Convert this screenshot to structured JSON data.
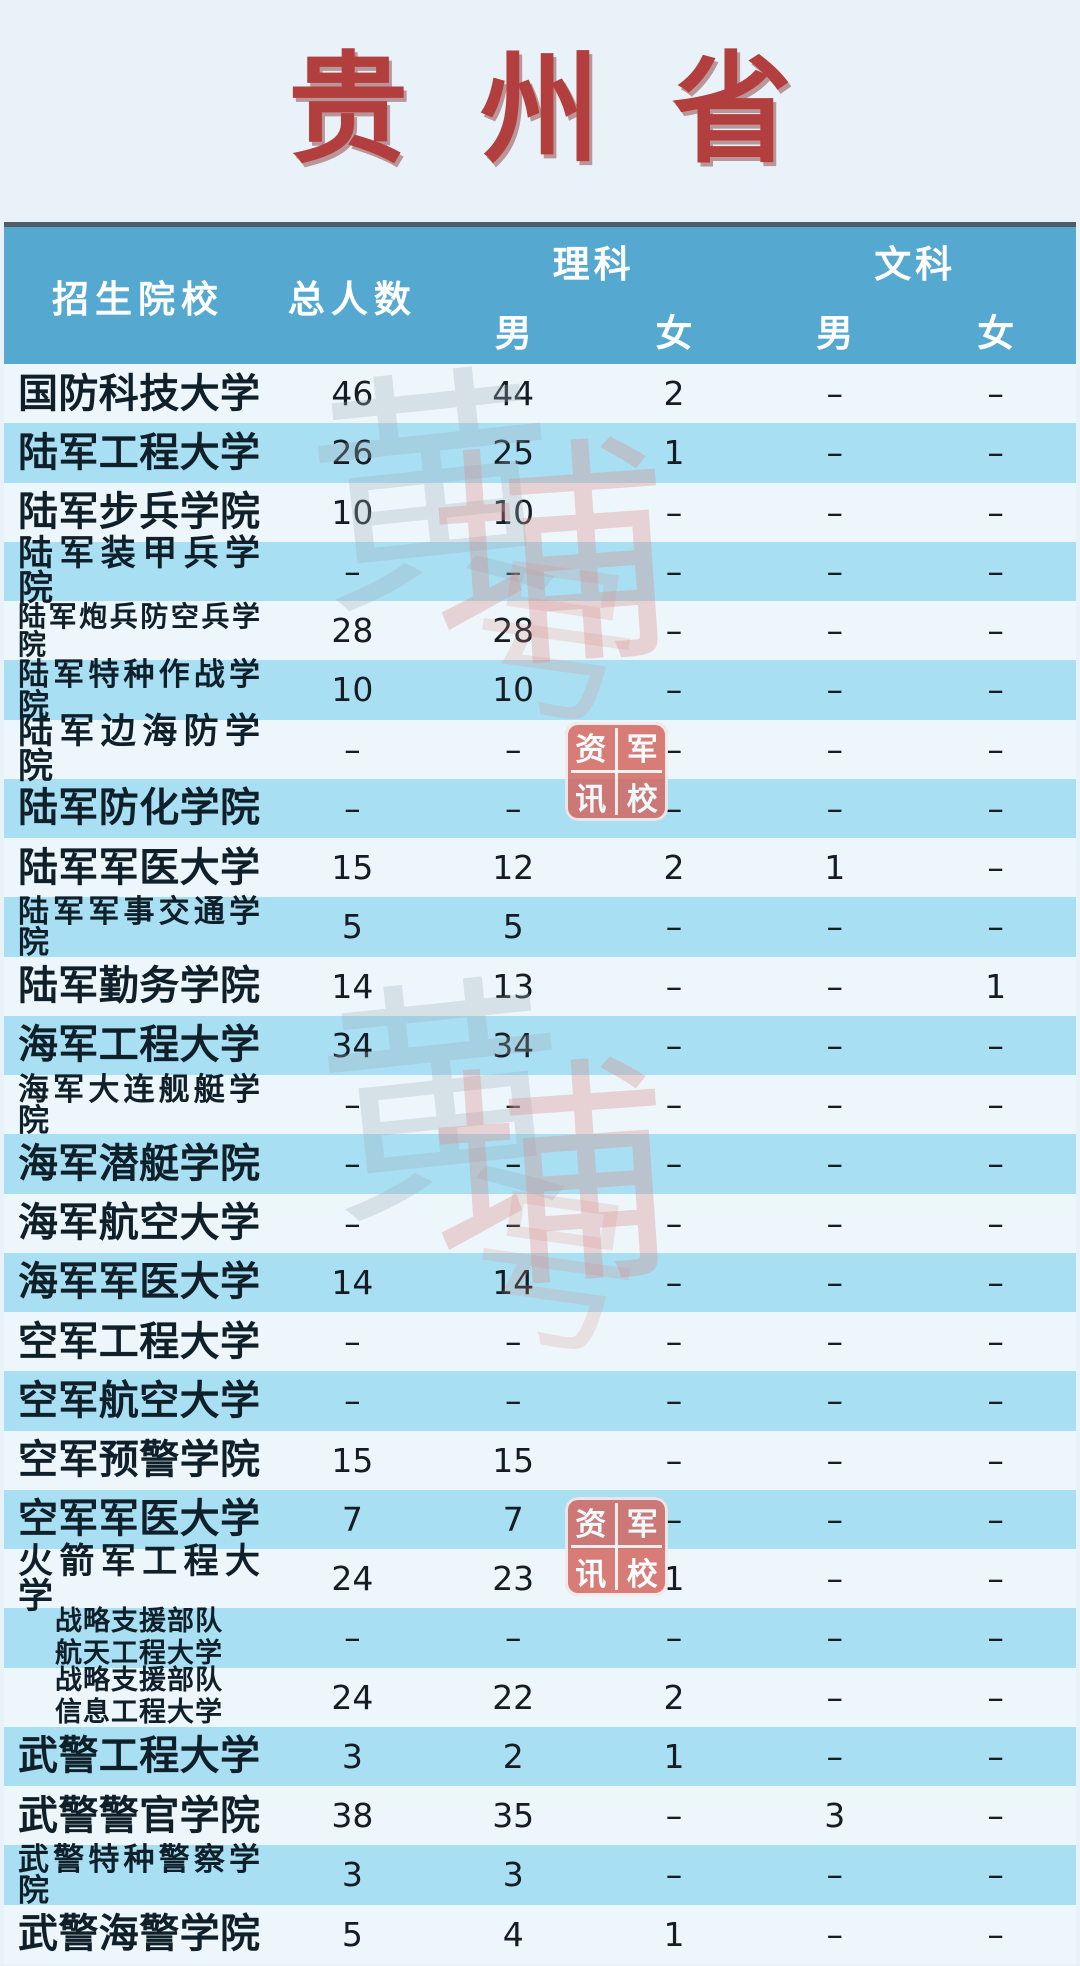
{
  "page": {
    "title": "贵州省"
  },
  "colors": {
    "title_red": "#b23f3d",
    "header_blue": "#55a9d0",
    "row_light": "#edf6fb",
    "row_blue": "#a9dff2",
    "table_top_border": "#4e5d68",
    "page_background": "#e9f2f9",
    "stamp_red": "#d4625c"
  },
  "table": {
    "header": {
      "school": "招生院校",
      "total": "总人数",
      "science": {
        "label": "理科",
        "male": "男",
        "female": "女"
      },
      "arts": {
        "label": "文科",
        "male": "男",
        "female": "女"
      }
    },
    "rows": [
      {
        "school": "国防科技大学",
        "total": "46",
        "sci_m": "44",
        "sci_f": "2",
        "art_m": "–",
        "art_f": "–"
      },
      {
        "school": "陆军工程大学",
        "total": "26",
        "sci_m": "25",
        "sci_f": "1",
        "art_m": "–",
        "art_f": "–"
      },
      {
        "school": "陆军步兵学院",
        "total": "10",
        "sci_m": "10",
        "sci_f": "–",
        "art_m": "–",
        "art_f": "–"
      },
      {
        "school": "陆军装甲兵学院",
        "total": "–",
        "sci_m": "–",
        "sci_f": "–",
        "art_m": "–",
        "art_f": "–"
      },
      {
        "school": "陆军炮兵防空兵学院",
        "total": "28",
        "sci_m": "28",
        "sci_f": "–",
        "art_m": "–",
        "art_f": "–"
      },
      {
        "school": "陆军特种作战学院",
        "total": "10",
        "sci_m": "10",
        "sci_f": "–",
        "art_m": "–",
        "art_f": "–"
      },
      {
        "school": "陆军边海防学院",
        "total": "–",
        "sci_m": "–",
        "sci_f": "–",
        "art_m": "–",
        "art_f": "–"
      },
      {
        "school": "陆军防化学院",
        "total": "–",
        "sci_m": "–",
        "sci_f": "–",
        "art_m": "–",
        "art_f": "–"
      },
      {
        "school": "陆军军医大学",
        "total": "15",
        "sci_m": "12",
        "sci_f": "2",
        "art_m": "1",
        "art_f": "–"
      },
      {
        "school": "陆军军事交通学院",
        "total": "5",
        "sci_m": "5",
        "sci_f": "–",
        "art_m": "–",
        "art_f": "–"
      },
      {
        "school": "陆军勤务学院",
        "total": "14",
        "sci_m": "13",
        "sci_f": "–",
        "art_m": "–",
        "art_f": "1"
      },
      {
        "school": "海军工程大学",
        "total": "34",
        "sci_m": "34",
        "sci_f": "–",
        "art_m": "–",
        "art_f": "–"
      },
      {
        "school": "海军大连舰艇学院",
        "total": "–",
        "sci_m": "–",
        "sci_f": "–",
        "art_m": "–",
        "art_f": "–"
      },
      {
        "school": "海军潜艇学院",
        "total": "–",
        "sci_m": "–",
        "sci_f": "–",
        "art_m": "–",
        "art_f": "–"
      },
      {
        "school": "海军航空大学",
        "total": "–",
        "sci_m": "–",
        "sci_f": "–",
        "art_m": "–",
        "art_f": "–"
      },
      {
        "school": "海军军医大学",
        "total": "14",
        "sci_m": "14",
        "sci_f": "–",
        "art_m": "–",
        "art_f": "–"
      },
      {
        "school": "空军工程大学",
        "total": "–",
        "sci_m": "–",
        "sci_f": "–",
        "art_m": "–",
        "art_f": "–"
      },
      {
        "school": "空军航空大学",
        "total": "–",
        "sci_m": "–",
        "sci_f": "–",
        "art_m": "–",
        "art_f": "–"
      },
      {
        "school": "空军预警学院",
        "total": "15",
        "sci_m": "15",
        "sci_f": "–",
        "art_m": "–",
        "art_f": "–"
      },
      {
        "school": "空军军医大学",
        "total": "7",
        "sci_m": "7",
        "sci_f": "–",
        "art_m": "–",
        "art_f": "–"
      },
      {
        "school": "火箭军工程大学",
        "total": "24",
        "sci_m": "23",
        "sci_f": "1",
        "art_m": "–",
        "art_f": "–"
      },
      {
        "school": "战略支援部队航天工程大学",
        "lines": [
          "战略支援部队",
          "航天工程大学"
        ],
        "total": "–",
        "sci_m": "–",
        "sci_f": "–",
        "art_m": "–",
        "art_f": "–"
      },
      {
        "school": "战略支援部队信息工程大学",
        "lines": [
          "战略支援部队",
          "信息工程大学"
        ],
        "total": "24",
        "sci_m": "22",
        "sci_f": "2",
        "art_m": "–",
        "art_f": "–"
      },
      {
        "school": "武警工程大学",
        "total": "3",
        "sci_m": "2",
        "sci_f": "1",
        "art_m": "–",
        "art_f": "–"
      },
      {
        "school": "武警警官学院",
        "total": "38",
        "sci_m": "35",
        "sci_f": "–",
        "art_m": "3",
        "art_f": "–"
      },
      {
        "school": "武警特种警察学院",
        "total": "3",
        "sci_m": "3",
        "sci_f": "–",
        "art_m": "–",
        "art_f": "–"
      },
      {
        "school": "武警海警学院",
        "total": "5",
        "sci_m": "4",
        "sci_f": "1",
        "art_m": "–",
        "art_f": "–"
      }
    ]
  },
  "watermark": {
    "calligraphy_text": "黄埔一号",
    "char_1": "黄",
    "char_2": "埔",
    "char_3": "号",
    "stamp_label": "军校资讯",
    "stamp_tl": "资",
    "stamp_tr": "军",
    "stamp_bl": "讯",
    "stamp_br": "校"
  }
}
